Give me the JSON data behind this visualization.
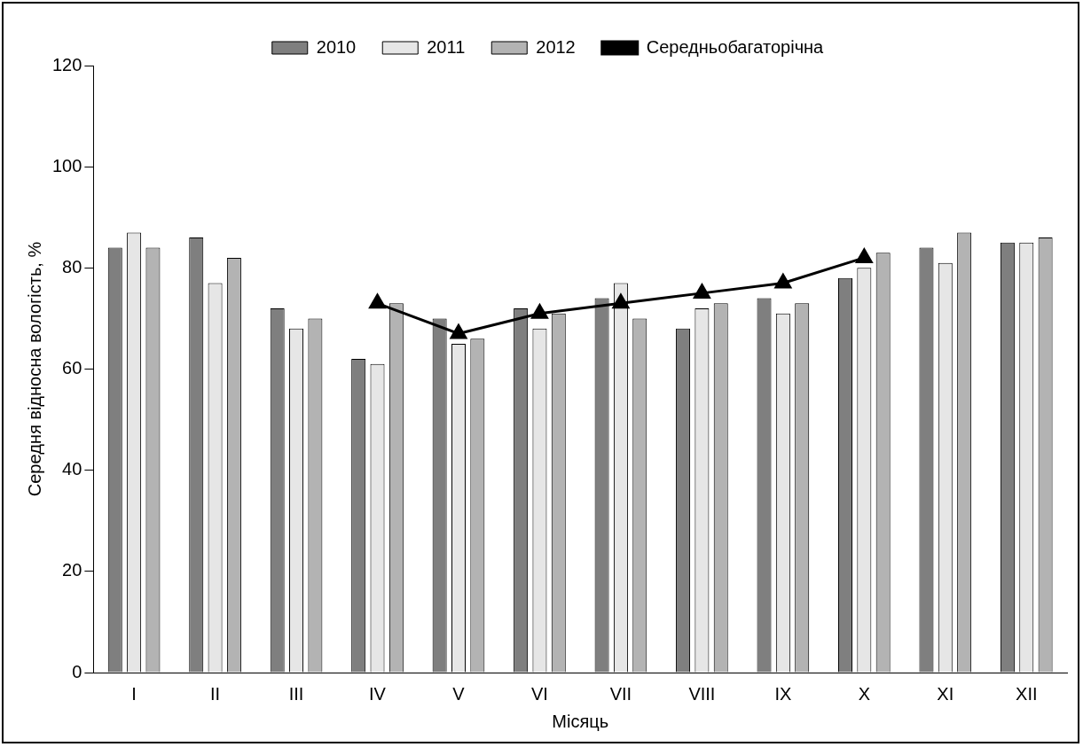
{
  "chart_data": {
    "type": "bar",
    "xlabel": "Місяць",
    "ylabel": "Середня відносна вологість, %",
    "categories": [
      "I",
      "II",
      "III",
      "IV",
      "V",
      "VI",
      "VII",
      "VIII",
      "IX",
      "X",
      "XI",
      "XII"
    ],
    "series": [
      {
        "name": "2010",
        "color": "#7f7f7f",
        "values": [
          84,
          86,
          72,
          62,
          70,
          72,
          74,
          68,
          74,
          78,
          84,
          85
        ]
      },
      {
        "name": "2011",
        "color": "#e6e6e6",
        "values": [
          87,
          77,
          68,
          61,
          65,
          68,
          77,
          72,
          71,
          80,
          81,
          85
        ]
      },
      {
        "name": "2012",
        "color": "#b3b3b3",
        "values": [
          84,
          82,
          70,
          73,
          66,
          71,
          70,
          73,
          73,
          83,
          87,
          86
        ]
      },
      {
        "name": "Середньобагаторічна",
        "type": "line",
        "color": "#000000",
        "values": [
          null,
          null,
          null,
          73,
          67,
          71,
          73,
          75,
          77,
          82,
          null,
          null
        ]
      }
    ],
    "ylim": [
      0,
      120
    ],
    "yticks": [
      0,
      20,
      40,
      60,
      80,
      100,
      120
    ],
    "grid": false,
    "legend": "top",
    "marker": "triangle",
    "line_style": "solid"
  }
}
